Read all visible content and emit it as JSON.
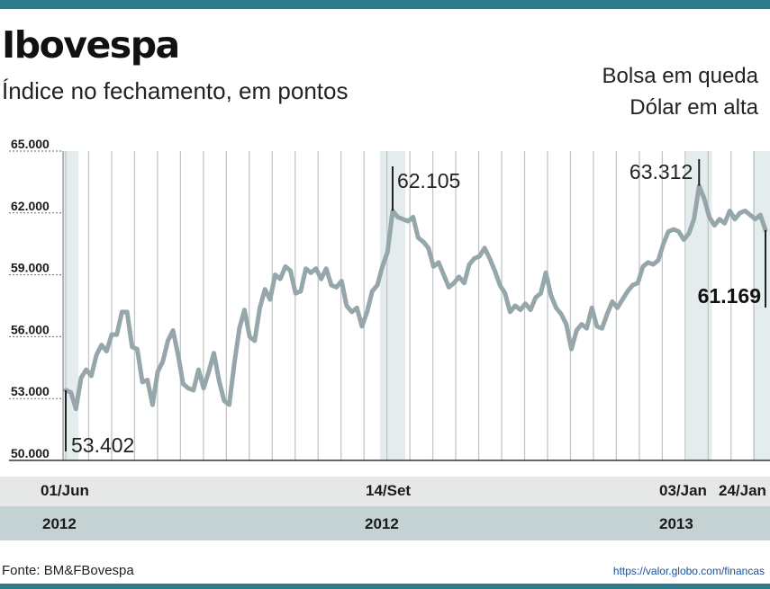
{
  "header": {
    "title": "Ibovespa",
    "subtitle": "Índice no fechamento, em pontos",
    "note_line1": "Bolsa em queda",
    "note_line2": "Dólar em alta"
  },
  "footer": {
    "source": "Fonte: BM&FBovespa",
    "url": "https://valor.globo.com/financas"
  },
  "colors": {
    "accent": "#2a7d8c",
    "line": "#95a7ab",
    "shade": "#e4ecee"
  },
  "chart_data": {
    "type": "line",
    "title": "Ibovespa",
    "subtitle": "Índice no fechamento, em pontos",
    "ylim": [
      50000,
      65000
    ],
    "yticks": [
      50000,
      53000,
      56000,
      59000,
      62000,
      65000
    ],
    "ytick_labels": [
      "50.000",
      "53.000",
      "56.000",
      "59.000",
      "62.000",
      "65.000"
    ],
    "grid": "vertical",
    "date_labels": [
      "01/Jun",
      "14/Set",
      "03/Jan",
      "24/Jan"
    ],
    "year_labels": [
      "2012",
      "2012",
      "2013"
    ],
    "annotations": [
      {
        "label": "53.402",
        "value": 53402,
        "date": "01/Jun/2012"
      },
      {
        "label": "62.105",
        "value": 62105,
        "date": "14/Set/2012"
      },
      {
        "label": "63.312",
        "value": 63312,
        "date": "03/Jan/2013"
      },
      {
        "label": "61.169",
        "value": 61169,
        "date": "24/Jan/2013"
      }
    ],
    "series": [
      {
        "values": [
          53402,
          53300,
          52500,
          54000,
          54400,
          54100,
          55100,
          55600,
          55300,
          56100,
          56100,
          57200,
          57200,
          55500,
          55400,
          53800,
          53900,
          52700,
          54300,
          54800,
          55800,
          56300,
          55100,
          53700,
          53500,
          53400,
          54400,
          53500,
          54300,
          55200,
          53900,
          52900,
          52700,
          54700,
          56400,
          57300,
          56000,
          55800,
          57400,
          58300,
          57800,
          59000,
          58800,
          59400,
          59200,
          58100,
          58200,
          59300,
          59100,
          59300,
          58800,
          59300,
          58500,
          58400,
          58700,
          57500,
          57200,
          57400,
          56500,
          57200,
          58200,
          58500,
          59400,
          60100,
          62105,
          61800,
          61700,
          61600,
          61800,
          60800,
          60600,
          60300,
          59400,
          59600,
          59000,
          58400,
          58600,
          58900,
          58600,
          59500,
          59800,
          59900,
          60300,
          59800,
          59200,
          58500,
          58100,
          57200,
          57500,
          57300,
          57600,
          57300,
          57900,
          58100,
          59100,
          58000,
          57400,
          57100,
          56600,
          55400,
          56300,
          56600,
          56400,
          57400,
          56500,
          56400,
          57100,
          57700,
          57400,
          57800,
          58200,
          58500,
          58600,
          59400,
          59600,
          59500,
          59700,
          60500,
          61100,
          61200,
          61100,
          60700,
          61000,
          61700,
          63312,
          62700,
          61800,
          61400,
          61700,
          61500,
          62100,
          61700,
          62000,
          62100,
          61900,
          61700,
          61900,
          61169
        ]
      }
    ]
  }
}
